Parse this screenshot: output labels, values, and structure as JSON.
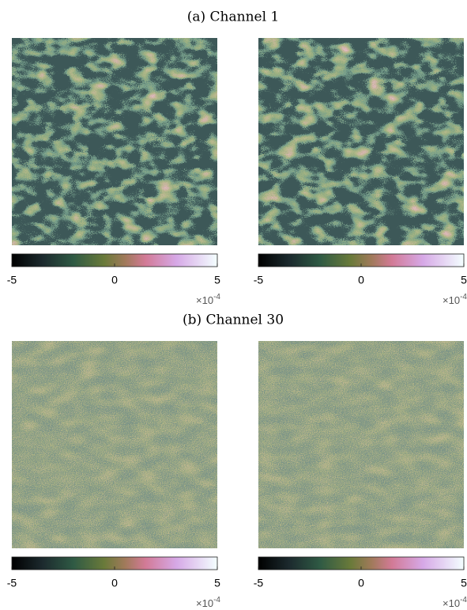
{
  "panels": [
    {
      "caption": "(a) Channel 1",
      "colorbars": [
        {
          "clim": [
            -5,
            5
          ],
          "ticks": [
            -5,
            0,
            5
          ],
          "multiplier": "×10",
          "exponent": "-4"
        },
        {
          "clim": [
            -5,
            5
          ],
          "ticks": [
            -5,
            0,
            5
          ],
          "multiplier": "×10",
          "exponent": "-4"
        }
      ]
    },
    {
      "caption": "(b) Channel 30",
      "colorbars": [
        {
          "clim": [
            -5,
            5
          ],
          "ticks": [
            -5,
            0,
            5
          ],
          "multiplier": "×10",
          "exponent": "-4"
        },
        {
          "clim": [
            -5,
            5
          ],
          "ticks": [
            -5,
            0,
            5
          ],
          "multiplier": "×10",
          "exponent": "-4"
        }
      ]
    }
  ]
}
